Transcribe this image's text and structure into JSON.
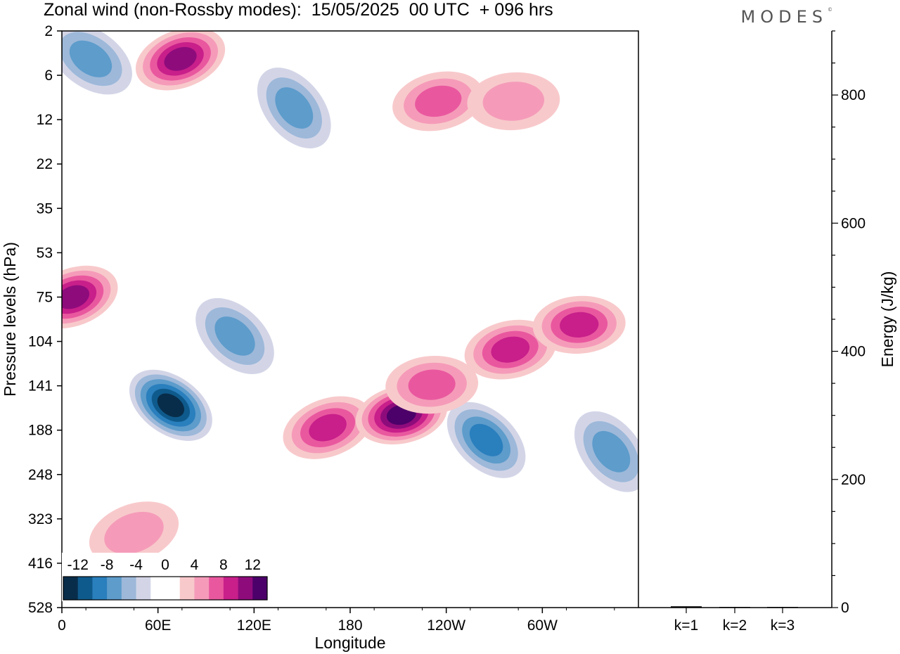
{
  "title": "Zonal wind (non-Rossby modes):  15/05/2025  00 UTC  + 096 hrs",
  "brand": "MODES",
  "chart_data": [
    {
      "type": "heatmap",
      "xlabel": "Longitude",
      "ylabel": "Pressure levels (hPa)",
      "x_ticks": [
        "0",
        "60E",
        "120E",
        "180",
        "120W",
        "60W"
      ],
      "y_ticks": [
        "2",
        "6",
        "12",
        "22",
        "35",
        "53",
        "75",
        "104",
        "141",
        "188",
        "248",
        "323",
        "416",
        "528"
      ],
      "colorbar": {
        "labels": [
          "-12",
          "-8",
          "-4",
          "0",
          "4",
          "8",
          "12"
        ],
        "colors": [
          "#082d4a",
          "#0f5a8c",
          "#2a7fbd",
          "#5d9ccb",
          "#9db8d9",
          "#d3d5e7",
          "#ffffff",
          "#ffffff",
          "#f8c9cb",
          "#f59bb9",
          "#e9589f",
          "#c81f8a",
          "#8e0b7c",
          "#4c0069"
        ]
      },
      "features": [
        {
          "lon": 68,
          "p": 160,
          "value": -14
        },
        {
          "lon": 108,
          "p": 100,
          "value": -6
        },
        {
          "lon": 145,
          "p": 10,
          "value": -6
        },
        {
          "lon": 18,
          "p": 4,
          "value": -6
        },
        {
          "lon": 265,
          "p": 200,
          "value": -8
        },
        {
          "lon": 343,
          "p": 215,
          "value": -6
        },
        {
          "lon": 166,
          "p": 185,
          "value": 8
        },
        {
          "lon": 212,
          "p": 170,
          "value": 12
        },
        {
          "lon": 231,
          "p": 140,
          "value": 6
        },
        {
          "lon": 74,
          "p": 4,
          "value": 10
        },
        {
          "lon": 235,
          "p": 9,
          "value": 6
        },
        {
          "lon": 282,
          "p": 9,
          "value": 5
        },
        {
          "lon": 7,
          "p": 75,
          "value": 10
        },
        {
          "lon": 280,
          "p": 110,
          "value": 8
        },
        {
          "lon": 323,
          "p": 92,
          "value": 8
        },
        {
          "lon": 45,
          "p": 350,
          "value": 4
        }
      ]
    },
    {
      "type": "bar",
      "categories": [
        "k=1",
        "k=2",
        "k=3"
      ],
      "values": [
        2,
        1,
        0
      ],
      "ylabel": "Energy (J/kg)",
      "ylim": [
        0,
        900
      ],
      "y_ticks": [
        0,
        200,
        400,
        600,
        800
      ]
    }
  ]
}
